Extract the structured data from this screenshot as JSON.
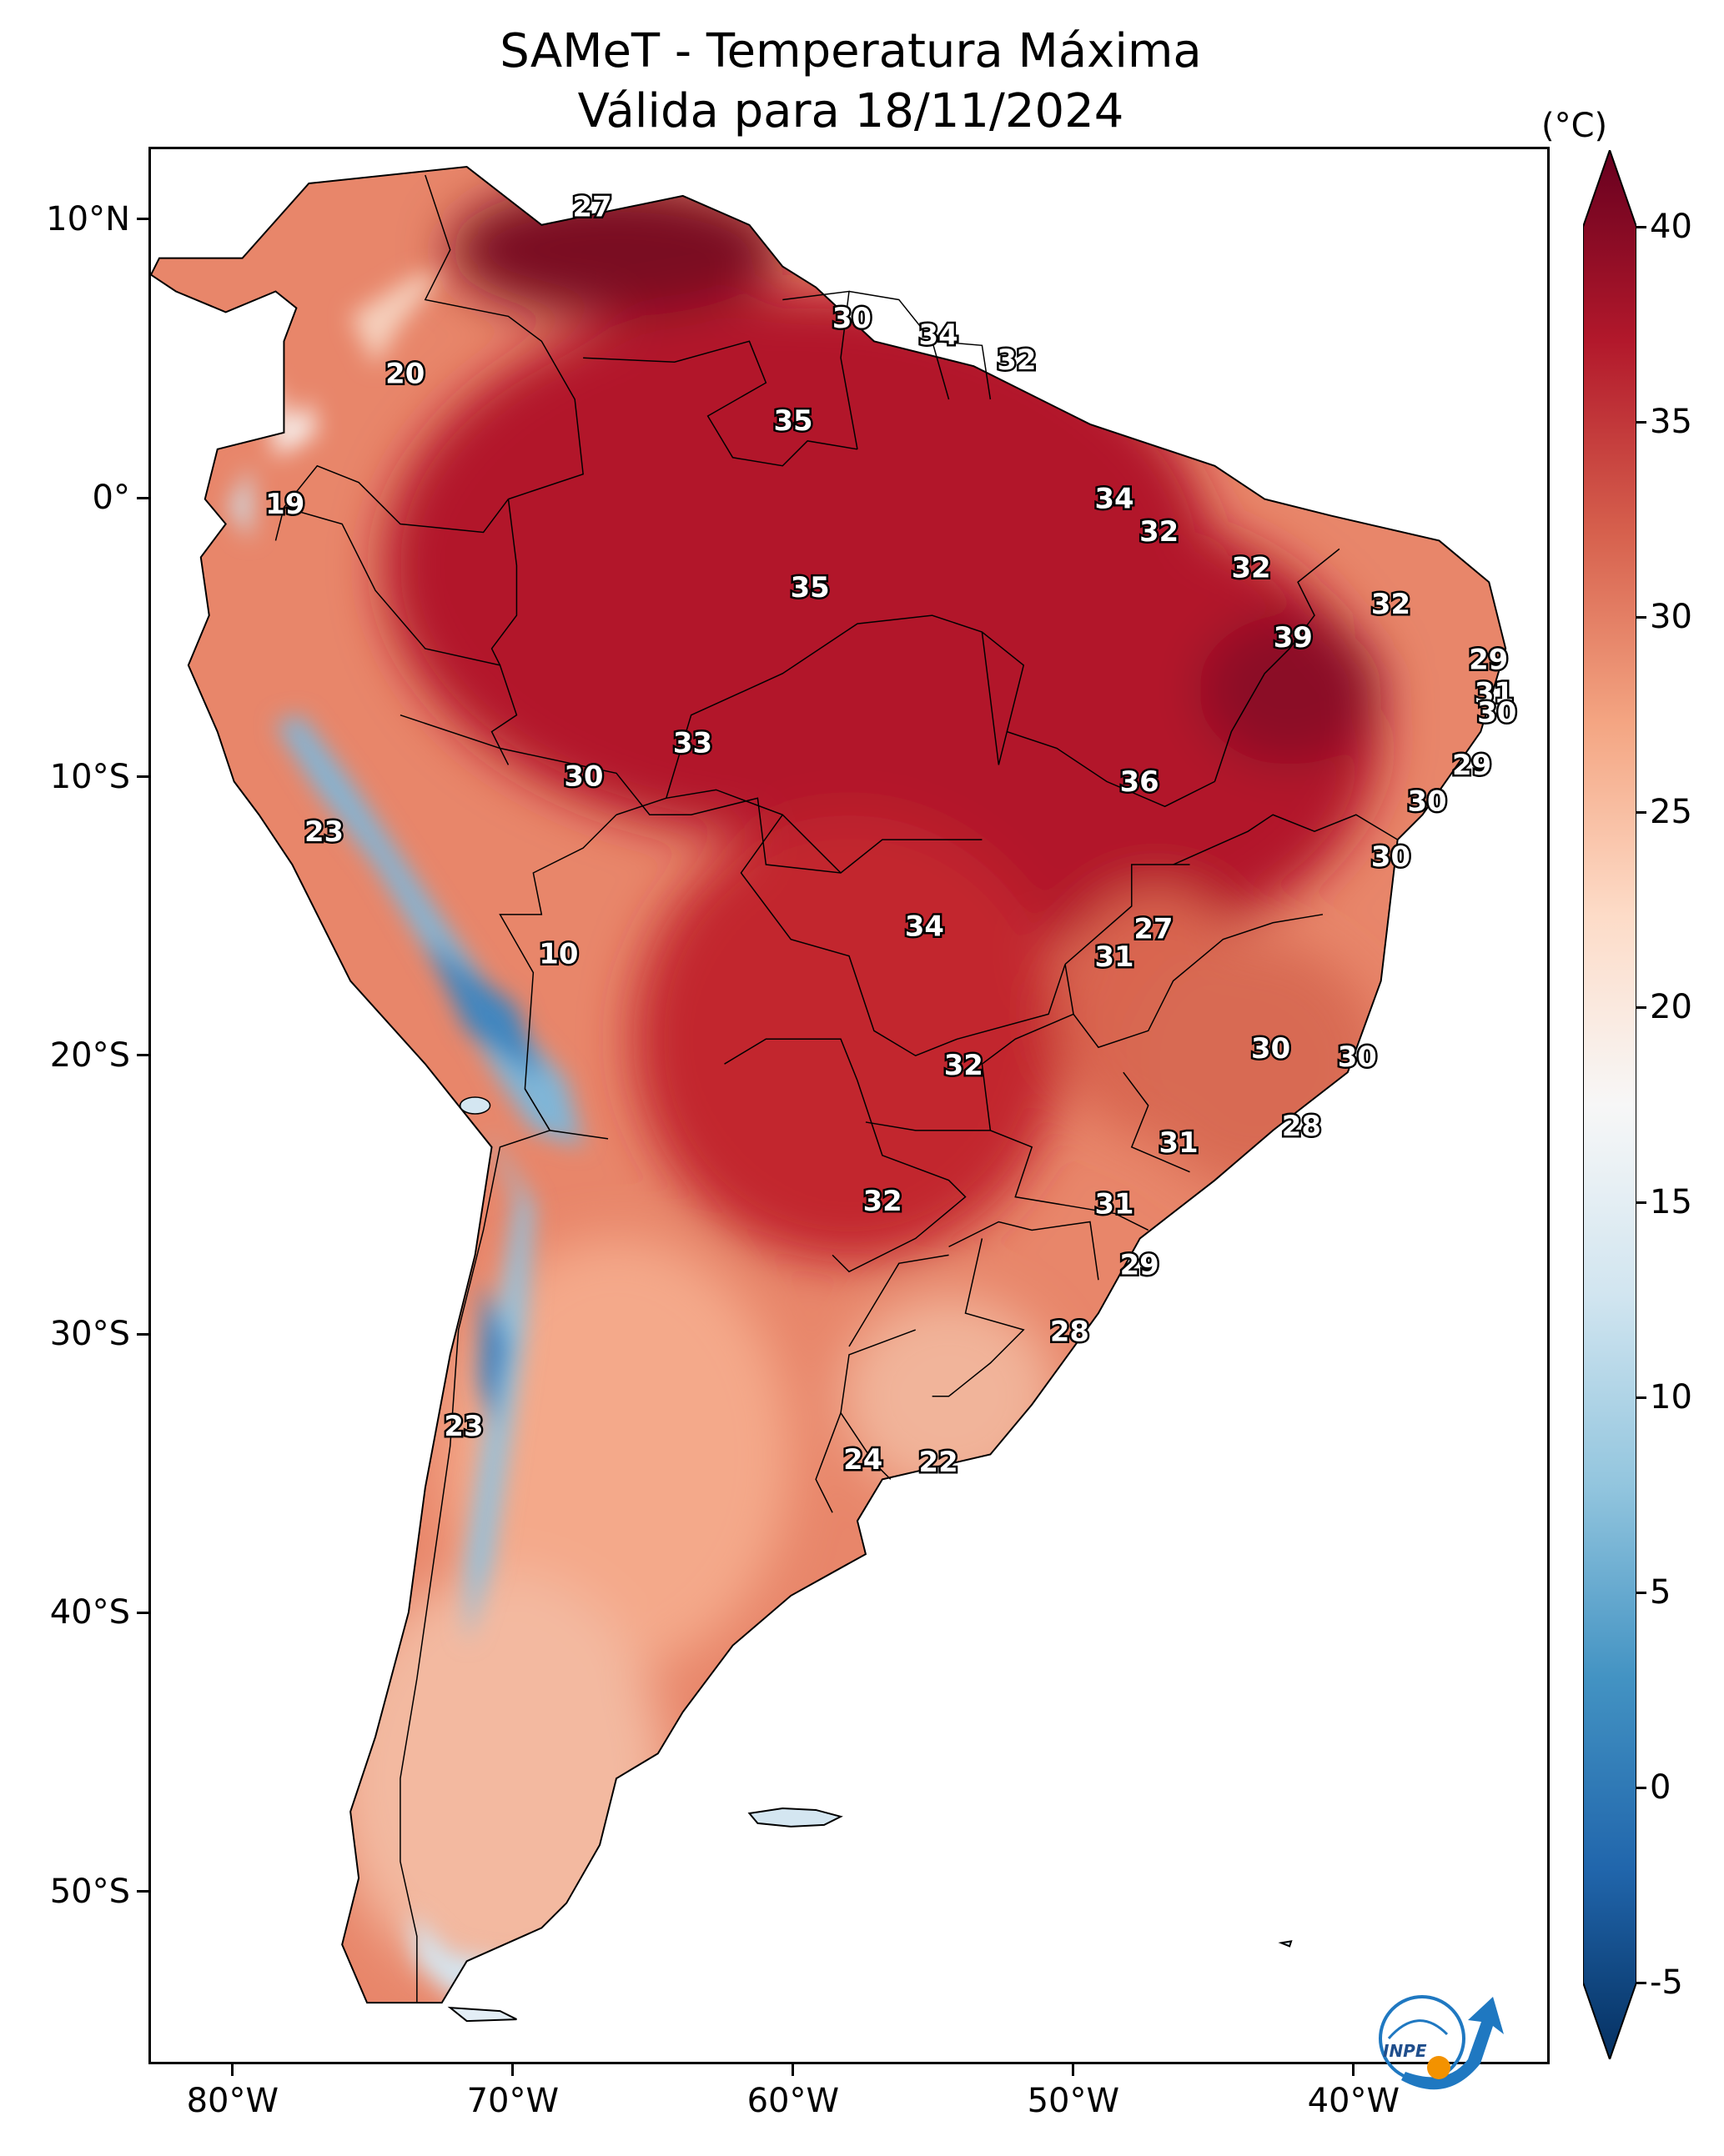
{
  "title": {
    "line1": "SAMeT - Temperatura Máxima",
    "line2": "Válida para 18/11/2024"
  },
  "x_ticks": [
    {
      "lon": -80,
      "label": "80°W"
    },
    {
      "lon": -70,
      "label": "70°W"
    },
    {
      "lon": -60,
      "label": "60°W"
    },
    {
      "lon": -50,
      "label": "50°W"
    },
    {
      "lon": -40,
      "label": "40°W"
    }
  ],
  "y_ticks": [
    {
      "lat": 10,
      "label": "10°N"
    },
    {
      "lat": 0,
      "label": "0°"
    },
    {
      "lat": -10,
      "label": "10°S"
    },
    {
      "lat": -20,
      "label": "20°S"
    },
    {
      "lat": -30,
      "label": "30°S"
    },
    {
      "lat": -40,
      "label": "40°S"
    },
    {
      "lat": -50,
      "label": "50°S"
    }
  ],
  "colorbar": {
    "unit": "(°C)",
    "min": -5,
    "max": 40,
    "ticks": [
      "40",
      "35",
      "30",
      "25",
      "20",
      "15",
      "10",
      "5",
      "0",
      "-5"
    ],
    "colors": [
      "#053061",
      "#2166ac",
      "#4393c3",
      "#92c5de",
      "#d1e5f0",
      "#f7f7f7",
      "#fddbc7",
      "#f4a582",
      "#d6604d",
      "#b2182b",
      "#67001f"
    ]
  },
  "temperature_labels": [
    {
      "value": "27",
      "lon": -67.2,
      "lat": 10.5
    },
    {
      "value": "30",
      "lon": -57.9,
      "lat": 6.5
    },
    {
      "value": "34",
      "lon": -54.8,
      "lat": 5.9
    },
    {
      "value": "32",
      "lon": -52.0,
      "lat": 5.0
    },
    {
      "value": "20",
      "lon": -73.9,
      "lat": 4.5
    },
    {
      "value": "35",
      "lon": -60.0,
      "lat": 2.8
    },
    {
      "value": "34",
      "lon": -48.5,
      "lat": 0.0
    },
    {
      "value": "19",
      "lon": -78.2,
      "lat": -0.2
    },
    {
      "value": "32",
      "lon": -46.9,
      "lat": -1.2
    },
    {
      "value": "32",
      "lon": -43.6,
      "lat": -2.5
    },
    {
      "value": "35",
      "lon": -59.4,
      "lat": -3.2
    },
    {
      "value": "32",
      "lon": -38.6,
      "lat": -3.8
    },
    {
      "value": "39",
      "lon": -42.1,
      "lat": -5.0
    },
    {
      "value": "29",
      "lon": -35.1,
      "lat": -5.8
    },
    {
      "value": "31",
      "lon": -34.9,
      "lat": -7.0
    },
    {
      "value": "30",
      "lon": -34.8,
      "lat": -7.7
    },
    {
      "value": "33",
      "lon": -63.6,
      "lat": -8.8
    },
    {
      "value": "29",
      "lon": -35.7,
      "lat": -9.6
    },
    {
      "value": "30",
      "lon": -67.5,
      "lat": -10.0
    },
    {
      "value": "36",
      "lon": -47.6,
      "lat": -10.2
    },
    {
      "value": "30",
      "lon": -37.3,
      "lat": -10.9
    },
    {
      "value": "23",
      "lon": -76.8,
      "lat": -12.0
    },
    {
      "value": "30",
      "lon": -38.6,
      "lat": -12.9
    },
    {
      "value": "27",
      "lon": -47.1,
      "lat": -15.5
    },
    {
      "value": "34",
      "lon": -55.3,
      "lat": -15.4
    },
    {
      "value": "31",
      "lon": -48.5,
      "lat": -16.5
    },
    {
      "value": "10",
      "lon": -68.4,
      "lat": -16.4
    },
    {
      "value": "30",
      "lon": -42.9,
      "lat": -19.8
    },
    {
      "value": "30",
      "lon": -39.8,
      "lat": -20.1
    },
    {
      "value": "32",
      "lon": -53.9,
      "lat": -20.4
    },
    {
      "value": "28",
      "lon": -41.8,
      "lat": -22.6
    },
    {
      "value": "31",
      "lon": -46.2,
      "lat": -23.2
    },
    {
      "value": "32",
      "lon": -56.8,
      "lat": -25.3
    },
    {
      "value": "31",
      "lon": -48.5,
      "lat": -25.4
    },
    {
      "value": "29",
      "lon": -47.6,
      "lat": -27.6
    },
    {
      "value": "28",
      "lon": -50.1,
      "lat": -30.0
    },
    {
      "value": "23",
      "lon": -71.8,
      "lat": -33.4
    },
    {
      "value": "24",
      "lon": -57.5,
      "lat": -34.6
    },
    {
      "value": "22",
      "lon": -54.8,
      "lat": -34.7
    }
  ],
  "logo": {
    "text": "INPE"
  }
}
